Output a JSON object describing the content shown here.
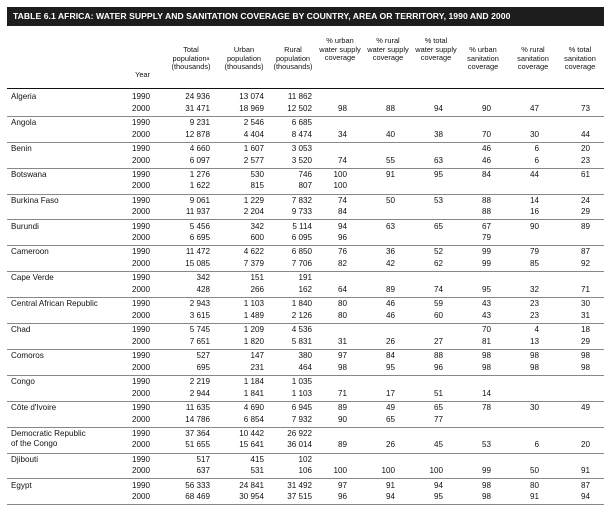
{
  "title": "TABLE 6.1   AFRICA: WATER SUPPLY AND SANITATION COVERAGE BY COUNTRY, AREA OR TERRITORY, 1990 AND 2000",
  "columns": {
    "year": "Year",
    "total_pop": "Total population",
    "total_pop_sup": "a",
    "total_pop_unit": "(thousands)",
    "urban_pop": "Urban population (thousands)",
    "rural_pop": "Rural population (thousands)",
    "urban_water": "% urban water supply coverage",
    "rural_water": "% rural water supply coverage",
    "total_water": "% total water supply coverage",
    "urban_san": "% urban sanitation coverage",
    "rural_san": "% rural sanitation coverage",
    "total_san": "% total sanitation coverage"
  },
  "rows": [
    {
      "country": "Algeria",
      "data": [
        [
          "1990",
          "24 936",
          "13 074",
          "11 862",
          "",
          "",
          "",
          "",
          "",
          ""
        ],
        [
          "2000",
          "31 471",
          "18 969",
          "12 502",
          "98",
          "88",
          "94",
          "90",
          "47",
          "73"
        ]
      ]
    },
    {
      "country": "Angola",
      "data": [
        [
          "1990",
          "9 231",
          "2 546",
          "6 685",
          "",
          "",
          "",
          "",
          "",
          ""
        ],
        [
          "2000",
          "12 878",
          "4 404",
          "8 474",
          "34",
          "40",
          "38",
          "70",
          "30",
          "44"
        ]
      ]
    },
    {
      "country": "Benin",
      "data": [
        [
          "1990",
          "4 660",
          "1 607",
          "3 053",
          "",
          "",
          "",
          "46",
          "6",
          "20"
        ],
        [
          "2000",
          "6 097",
          "2 577",
          "3 520",
          "74",
          "55",
          "63",
          "46",
          "6",
          "23"
        ]
      ]
    },
    {
      "country": "Botswana",
      "data": [
        [
          "1990",
          "1 276",
          "530",
          "746",
          "100",
          "91",
          "95",
          "84",
          "44",
          "61"
        ],
        [
          "2000",
          "1 622",
          "815",
          "807",
          "100",
          "",
          "",
          "",
          "",
          ""
        ]
      ]
    },
    {
      "country": "Burkina Faso",
      "data": [
        [
          "1990",
          "9 061",
          "1 229",
          "7 832",
          "74",
          "50",
          "53",
          "88",
          "14",
          "24"
        ],
        [
          "2000",
          "11 937",
          "2 204",
          "9 733",
          "84",
          "",
          "",
          "88",
          "16",
          "29"
        ]
      ]
    },
    {
      "country": "Burundi",
      "data": [
        [
          "1990",
          "5 456",
          "342",
          "5 114",
          "94",
          "63",
          "65",
          "67",
          "90",
          "89"
        ],
        [
          "2000",
          "6 695",
          "600",
          "6 095",
          "96",
          "",
          "",
          "79",
          "",
          ""
        ]
      ]
    },
    {
      "country": "Cameroon",
      "data": [
        [
          "1990",
          "11 472",
          "4 622",
          "6 850",
          "76",
          "36",
          "52",
          "99",
          "79",
          "87"
        ],
        [
          "2000",
          "15 085",
          "7 379",
          "7 706",
          "82",
          "42",
          "62",
          "99",
          "85",
          "92"
        ]
      ]
    },
    {
      "country": "Cape Verde",
      "data": [
        [
          "1990",
          "342",
          "151",
          "191",
          "",
          "",
          "",
          "",
          "",
          ""
        ],
        [
          "2000",
          "428",
          "266",
          "162",
          "64",
          "89",
          "74",
          "95",
          "32",
          "71"
        ]
      ]
    },
    {
      "country": "Central African Republic",
      "data": [
        [
          "1990",
          "2 943",
          "1 103",
          "1 840",
          "80",
          "46",
          "59",
          "43",
          "23",
          "30"
        ],
        [
          "2000",
          "3 615",
          "1 489",
          "2 126",
          "80",
          "46",
          "60",
          "43",
          "23",
          "31"
        ]
      ]
    },
    {
      "country": "Chad",
      "data": [
        [
          "1990",
          "5 745",
          "1 209",
          "4 536",
          "",
          "",
          "",
          "70",
          "4",
          "18"
        ],
        [
          "2000",
          "7 651",
          "1 820",
          "5 831",
          "31",
          "26",
          "27",
          "81",
          "13",
          "29"
        ]
      ]
    },
    {
      "country": "Comoros",
      "data": [
        [
          "1990",
          "527",
          "147",
          "380",
          "97",
          "84",
          "88",
          "98",
          "98",
          "98"
        ],
        [
          "2000",
          "695",
          "231",
          "464",
          "98",
          "95",
          "96",
          "98",
          "98",
          "98"
        ]
      ]
    },
    {
      "country": "Congo",
      "data": [
        [
          "1990",
          "2 219",
          "1 184",
          "1 035",
          "",
          "",
          "",
          "",
          "",
          ""
        ],
        [
          "2000",
          "2 944",
          "1 841",
          "1 103",
          "71",
          "17",
          "51",
          "14",
          "",
          ""
        ]
      ]
    },
    {
      "country": "Côte d'Ivoire",
      "data": [
        [
          "1990",
          "11 635",
          "4 690",
          "6 945",
          "89",
          "49",
          "65",
          "78",
          "30",
          "49"
        ],
        [
          "2000",
          "14 786",
          "6 854",
          "7 932",
          "90",
          "65",
          "77",
          "",
          "",
          ""
        ]
      ]
    },
    {
      "country": "Democratic Republic\n   of the Congo",
      "data": [
        [
          "1990",
          "37 364",
          "10 442",
          "26 922",
          "",
          "",
          "",
          "",
          "",
          ""
        ],
        [
          "2000",
          "51 655",
          "15 641",
          "36 014",
          "89",
          "26",
          "45",
          "53",
          "6",
          "20"
        ]
      ]
    },
    {
      "country": "Djibouti",
      "data": [
        [
          "1990",
          "517",
          "415",
          "102",
          "",
          "",
          "",
          "",
          "",
          ""
        ],
        [
          "2000",
          "637",
          "531",
          "106",
          "100",
          "100",
          "100",
          "99",
          "50",
          "91"
        ]
      ]
    },
    {
      "country": "Egypt",
      "data": [
        [
          "1990",
          "56 333",
          "24 841",
          "31 492",
          "97",
          "91",
          "94",
          "98",
          "80",
          "87"
        ],
        [
          "2000",
          "68 469",
          "30 954",
          "37 515",
          "96",
          "94",
          "95",
          "98",
          "91",
          "94"
        ]
      ]
    }
  ]
}
